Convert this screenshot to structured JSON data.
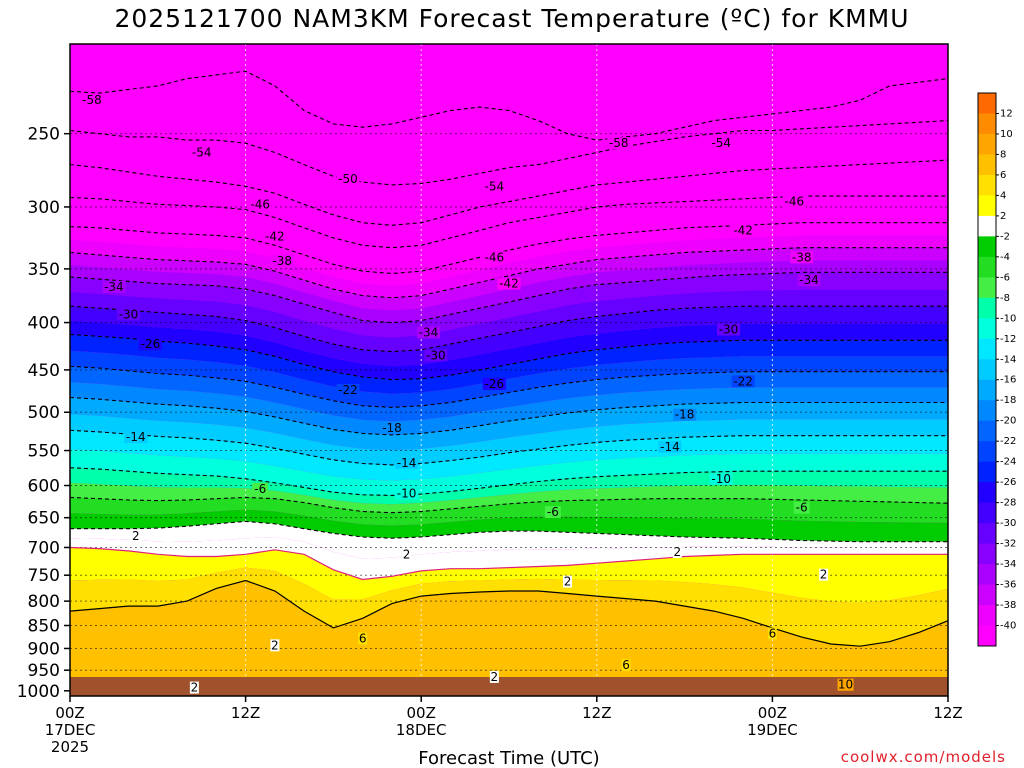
{
  "title": "2025121700 NAM3KM Forecast Temperature (ºC) for KMMU",
  "credit": "coolwx.com/models",
  "chart_data": {
    "type": "heatmap",
    "xlabel": "Forecast Time (UTC)",
    "x_ticks": [
      {
        "hour": 0,
        "lines": [
          "00Z",
          "17DEC",
          "2025"
        ]
      },
      {
        "hour": 12,
        "lines": [
          "12Z"
        ]
      },
      {
        "hour": 24,
        "lines": [
          "00Z",
          "18DEC"
        ]
      },
      {
        "hour": 36,
        "lines": [
          "12Z"
        ]
      },
      {
        "hour": 48,
        "lines": [
          "00Z",
          "19DEC"
        ]
      },
      {
        "hour": 60,
        "lines": [
          "12Z"
        ]
      }
    ],
    "xlim": [
      0,
      60
    ],
    "y_ticks": [
      250,
      300,
      350,
      400,
      450,
      500,
      550,
      600,
      650,
      700,
      750,
      800,
      850,
      900,
      950,
      1000
    ],
    "ylim": [
      200,
      1013
    ],
    "y_scale": "log",
    "ground_level_hpa": 1000,
    "colorbar": {
      "labels": [
        12,
        10,
        8,
        6,
        4,
        2,
        -2,
        -4,
        -6,
        -8,
        -10,
        -12,
        -14,
        -16,
        -18,
        -20,
        -22,
        -24,
        -26,
        -28,
        -30,
        -32,
        -34,
        -36,
        -38,
        -40
      ],
      "colors": [
        "#ff6a00",
        "#ff8c00",
        "#ffa500",
        "#ffc000",
        "#ffe000",
        "#ffff00",
        "#ffffff",
        "#00cc00",
        "#22dd22",
        "#44ee44",
        "#00ffaa",
        "#00ffdd",
        "#00e8ff",
        "#00ccff",
        "#00aaff",
        "#0088ff",
        "#0066ff",
        "#0044ff",
        "#0022ff",
        "#2200ff",
        "#4400ff",
        "#6600ff",
        "#8800ff",
        "#aa00ff",
        "#cc00ff",
        "#ee00ff",
        "#ff00ff"
      ]
    },
    "isotherms": [
      {
        "t": -58,
        "p": [
          225,
          226,
          224,
          222,
          218,
          216,
          214,
          222,
          236,
          244,
          246,
          244,
          240,
          236,
          234,
          236,
          242,
          250,
          254,
          252,
          250,
          246,
          242,
          240,
          238,
          236,
          234,
          230,
          222,
          220,
          218
        ]
      },
      {
        "t": -54,
        "p": [
          248,
          250,
          252,
          252,
          254,
          254,
          256,
          262,
          270,
          278,
          282,
          284,
          283,
          280,
          276,
          272,
          270,
          266,
          262,
          258,
          255,
          252,
          250,
          248,
          248,
          247,
          246,
          245,
          244,
          243,
          242
        ]
      },
      {
        "t": -50,
        "p": [
          270,
          272,
          275,
          278,
          280,
          282,
          285,
          290,
          298,
          306,
          312,
          314,
          312,
          306,
          300,
          296,
          292,
          288,
          284,
          282,
          280,
          278,
          276,
          274,
          273,
          272,
          271,
          270,
          269,
          268,
          267
        ]
      },
      {
        "t": -46,
        "p": [
          293,
          294,
          296,
          298,
          299,
          300,
          302,
          308,
          316,
          324,
          330,
          332,
          330,
          324,
          318,
          312,
          308,
          304,
          300,
          298,
          297,
          296,
          295,
          294,
          293,
          292,
          292,
          292,
          292,
          292,
          292
        ]
      },
      {
        "t": -42,
        "p": [
          315,
          316,
          318,
          320,
          321,
          322,
          324,
          330,
          338,
          346,
          352,
          354,
          352,
          346,
          340,
          334,
          329,
          325,
          322,
          320,
          318,
          316,
          315,
          314,
          313,
          312,
          312,
          312,
          312,
          312,
          312
        ]
      },
      {
        "t": -38,
        "p": [
          336,
          338,
          340,
          342,
          343,
          344,
          346,
          352,
          360,
          368,
          374,
          376,
          374,
          368,
          362,
          356,
          350,
          346,
          342,
          340,
          338,
          336,
          335,
          334,
          333,
          332,
          332,
          332,
          332,
          332,
          332
        ]
      },
      {
        "t": -34,
        "p": [
          357,
          359,
          361,
          363,
          364,
          365,
          368,
          374,
          382,
          390,
          398,
          400,
          398,
          392,
          386,
          380,
          374,
          368,
          364,
          362,
          360,
          358,
          356,
          355,
          354,
          353,
          353,
          353,
          353,
          353,
          353
        ]
      },
      {
        "t": -30,
        "p": [
          384,
          386,
          388,
          390,
          392,
          394,
          398,
          405,
          414,
          422,
          428,
          430,
          428,
          422,
          416,
          410,
          404,
          398,
          394,
          391,
          388,
          386,
          385,
          384,
          384,
          384,
          384,
          384,
          384,
          384,
          384
        ]
      },
      {
        "t": -26,
        "p": [
          412,
          414,
          416,
          419,
          421,
          424,
          428,
          435,
          444,
          452,
          458,
          461,
          460,
          456,
          450,
          444,
          438,
          432,
          428,
          425,
          422,
          420,
          419,
          418,
          418,
          418,
          418,
          418,
          418,
          418,
          418
        ]
      },
      {
        "t": -22,
        "p": [
          446,
          448,
          451,
          454,
          456,
          459,
          463,
          470,
          478,
          486,
          492,
          494,
          492,
          488,
          482,
          476,
          470,
          465,
          461,
          458,
          456,
          454,
          453,
          452,
          452,
          452,
          452,
          452,
          452,
          452,
          452
        ]
      },
      {
        "t": -18,
        "p": [
          482,
          484,
          487,
          490,
          492,
          495,
          499,
          506,
          514,
          522,
          527,
          529,
          527,
          523,
          517,
          511,
          506,
          501,
          497,
          494,
          492,
          490,
          489,
          488,
          488,
          488,
          488,
          488,
          488,
          488,
          488
        ]
      },
      {
        "t": -14,
        "p": [
          523,
          525,
          528,
          531,
          533,
          536,
          540,
          547,
          555,
          563,
          568,
          570,
          568,
          564,
          559,
          553,
          548,
          543,
          539,
          536,
          534,
          532,
          531,
          530,
          530,
          530,
          530,
          530,
          530,
          530,
          530
        ]
      },
      {
        "t": -10,
        "p": [
          574,
          576,
          579,
          582,
          584,
          586,
          590,
          596,
          603,
          610,
          614,
          615,
          613,
          609,
          604,
          599,
          594,
          590,
          587,
          585,
          583,
          581,
          580,
          579,
          579,
          579,
          579,
          579,
          579,
          579,
          579
        ]
      },
      {
        "t": -6,
        "p": [
          618,
          620,
          622,
          623,
          622,
          620,
          618,
          620,
          626,
          634,
          640,
          642,
          640,
          636,
          632,
          628,
          625,
          623,
          622,
          621,
          620,
          620,
          620,
          620,
          621,
          622,
          623,
          624,
          625,
          626,
          627
        ]
      },
      {
        "t": -2,
        "p": [
          668,
          668,
          668,
          667,
          664,
          660,
          656,
          660,
          668,
          676,
          682,
          684,
          682,
          678,
          674,
          672,
          672,
          674,
          676,
          678,
          680,
          682,
          683,
          684,
          686,
          688,
          689,
          690,
          690,
          690,
          690
        ]
      },
      {
        "t": 2,
        "p": [
          700,
          702,
          706,
          712,
          716,
          716,
          712,
          704,
          712,
          740,
          758,
          752,
          742,
          738,
          738,
          736,
          734,
          732,
          728,
          724,
          720,
          716,
          714,
          712,
          712,
          712,
          712,
          712,
          712,
          712,
          712
        ]
      },
      {
        "t": 6,
        "p": [
          820,
          815,
          810,
          810,
          800,
          775,
          760,
          780,
          820,
          855,
          835,
          805,
          790,
          785,
          782,
          780,
          780,
          785,
          790,
          795,
          800,
          810,
          820,
          835,
          855,
          875,
          890,
          895,
          885,
          865,
          840
        ]
      }
    ],
    "contour_labels": [
      {
        "t": -58,
        "h": 1.5,
        "p": 230
      },
      {
        "t": -58,
        "h": 37.5,
        "p": 256
      },
      {
        "t": -54,
        "h": 9,
        "p": 262
      },
      {
        "t": -54,
        "h": 29,
        "p": 285
      },
      {
        "t": -54,
        "h": 44.5,
        "p": 256
      },
      {
        "t": -50,
        "h": 19,
        "p": 280
      },
      {
        "t": -46,
        "h": 13,
        "p": 298
      },
      {
        "t": -46,
        "h": 49.5,
        "p": 296
      },
      {
        "t": -42,
        "h": 14,
        "p": 323
      },
      {
        "t": -42,
        "h": 46,
        "p": 318
      },
      {
        "t": -46,
        "h": 29,
        "p": 340
      },
      {
        "t": -42,
        "h": 30,
        "p": 363
      },
      {
        "t": -38,
        "h": 14.5,
        "p": 343
      },
      {
        "t": -38,
        "h": 50,
        "p": 340
      },
      {
        "t": -34,
        "h": 3,
        "p": 366
      },
      {
        "t": -34,
        "h": 50.5,
        "p": 360
      },
      {
        "t": -30,
        "h": 4,
        "p": 392
      },
      {
        "t": -30,
        "h": 45,
        "p": 407
      },
      {
        "t": -34,
        "h": 24.5,
        "p": 410
      },
      {
        "t": -30,
        "h": 25,
        "p": 434
      },
      {
        "t": -26,
        "h": 5.5,
        "p": 422
      },
      {
        "t": -26,
        "h": 29,
        "p": 466
      },
      {
        "t": -22,
        "h": 19,
        "p": 473
      },
      {
        "t": -22,
        "h": 46,
        "p": 463
      },
      {
        "t": -18,
        "h": 22,
        "p": 520
      },
      {
        "t": -18,
        "h": 42,
        "p": 503
      },
      {
        "t": -14,
        "h": 4.5,
        "p": 532
      },
      {
        "t": -14,
        "h": 23,
        "p": 567
      },
      {
        "t": -14,
        "h": 41,
        "p": 545
      },
      {
        "t": -10,
        "h": 23,
        "p": 612
      },
      {
        "t": -10,
        "h": 44.5,
        "p": 590
      },
      {
        "t": -6,
        "h": 13,
        "p": 605
      },
      {
        "t": -6,
        "h": 33,
        "p": 641
      },
      {
        "t": -6,
        "h": 50,
        "p": 634
      },
      {
        "t": 2,
        "h": 4.5,
        "p": 680
      },
      {
        "t": 2,
        "h": 23,
        "p": 712
      },
      {
        "t": 2,
        "h": 41.5,
        "p": 708
      },
      {
        "t": 2,
        "h": 34,
        "p": 762
      },
      {
        "t": 2,
        "h": 51.5,
        "p": 749
      },
      {
        "t": 2,
        "h": 14,
        "p": 893
      },
      {
        "t": 6,
        "h": 20,
        "p": 878
      },
      {
        "t": 6,
        "h": 38,
        "p": 938
      },
      {
        "t": 6,
        "h": 48,
        "p": 867
      },
      {
        "t": 2,
        "h": 29,
        "p": 966
      },
      {
        "t": 2,
        "h": 8.5,
        "p": 992
      },
      {
        "t": 10,
        "h": 53,
        "p": 985
      }
    ]
  }
}
